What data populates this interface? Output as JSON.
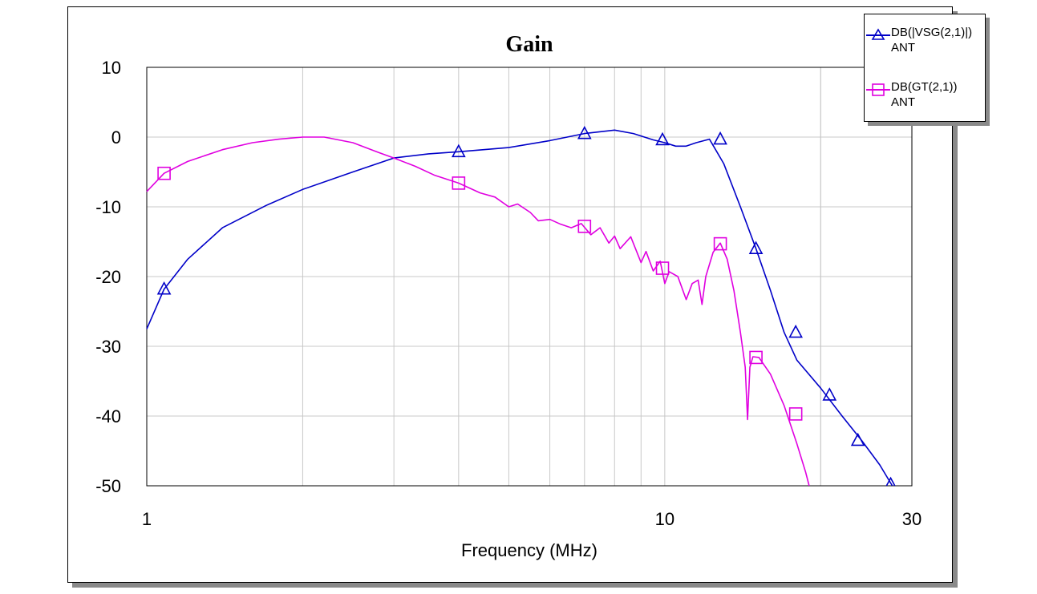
{
  "chart_data": {
    "type": "line",
    "title": "Gain",
    "xlabel": "Frequency (MHz)",
    "ylabel": "",
    "xscale": "log",
    "xlim": [
      1,
      30
    ],
    "ylim": [
      -50,
      10
    ],
    "x_tick_labels": [
      "1",
      "10",
      "30"
    ],
    "y_tick_labels": [
      "10",
      "0",
      "-10",
      "-20",
      "-30",
      "-40",
      "-50"
    ],
    "grid": true,
    "legend_position": "top-right",
    "series": [
      {
        "name": "DB(|VSG(2,1)|)",
        "sub_label": "ANT",
        "color": "#0000c8",
        "marker": "triangle",
        "x": [
          1.0,
          1.08,
          1.2,
          1.4,
          1.7,
          2.0,
          2.5,
          3.0,
          3.5,
          4.0,
          5.0,
          6.0,
          7.0,
          8.0,
          8.7,
          9.5,
          10.0,
          10.5,
          11.0,
          11.5,
          12.2,
          13.0,
          14.0,
          15.0,
          16.0,
          17.0,
          18.0,
          20.0,
          22.0,
          24.0,
          26.0,
          27.5
        ],
        "y": [
          -27.5,
          -21.8,
          -17.5,
          -13.0,
          -9.8,
          -7.5,
          -5.0,
          -3.0,
          -2.4,
          -2.1,
          -1.5,
          -0.5,
          0.5,
          1.0,
          0.5,
          -0.4,
          -0.8,
          -1.3,
          -1.3,
          -0.8,
          -0.3,
          -3.8,
          -10.0,
          -16.0,
          -22.0,
          -28.0,
          -32.0,
          -36.0,
          -40.0,
          -43.5,
          -47.0,
          -50.0
        ],
        "marker_x": [
          1.08,
          4.0,
          7.0,
          9.9,
          12.8,
          15.0,
          17.9,
          20.8,
          23.6,
          27.3
        ],
        "marker_y": [
          -21.8,
          -2.1,
          0.5,
          -0.4,
          -0.3,
          -16.0,
          -28.0,
          -37.0,
          -43.5,
          -49.8
        ]
      },
      {
        "name": "DB(GT(2,1))",
        "sub_label": "ANT",
        "color": "#e000e0",
        "marker": "square",
        "x": [
          1.0,
          1.08,
          1.2,
          1.4,
          1.6,
          1.8,
          2.0,
          2.2,
          2.5,
          2.8,
          3.0,
          3.3,
          3.6,
          4.0,
          4.4,
          4.7,
          5.0,
          5.2,
          5.5,
          5.7,
          6.0,
          6.3,
          6.6,
          6.9,
          7.2,
          7.5,
          7.8,
          8.0,
          8.2,
          8.6,
          9.0,
          9.2,
          9.5,
          9.8,
          10.0,
          10.2,
          10.6,
          11.0,
          11.3,
          11.6,
          11.8,
          12.0,
          12.4,
          12.8,
          13.2,
          13.6,
          14.0,
          14.3,
          14.45,
          14.6,
          14.8,
          15.2,
          16.0,
          17.0,
          18.0,
          18.7,
          19.0
        ],
        "y": [
          -7.8,
          -5.2,
          -3.5,
          -1.8,
          -0.8,
          -0.3,
          0.0,
          0.0,
          -0.8,
          -2.2,
          -3.0,
          -4.2,
          -5.5,
          -6.6,
          -8.0,
          -8.6,
          -10.0,
          -9.6,
          -10.8,
          -12.0,
          -11.8,
          -12.5,
          -13.0,
          -12.4,
          -14.0,
          -13.0,
          -15.2,
          -14.2,
          -16.0,
          -14.3,
          -18.0,
          -16.4,
          -19.2,
          -17.8,
          -21.0,
          -19.3,
          -20.0,
          -23.3,
          -21.0,
          -20.5,
          -24.0,
          -20.0,
          -16.5,
          -15.2,
          -17.5,
          -22.0,
          -28.0,
          -33.0,
          -40.5,
          -33.0,
          -31.5,
          -31.6,
          -34.0,
          -38.5,
          -44.0,
          -48.0,
          -50.0
        ],
        "marker_x": [
          1.08,
          4.0,
          7.0,
          9.9,
          12.8,
          15.0,
          17.9
        ],
        "marker_y": [
          -5.2,
          -6.6,
          -12.8,
          -18.8,
          -15.3,
          -31.6,
          -39.7
        ]
      }
    ]
  }
}
